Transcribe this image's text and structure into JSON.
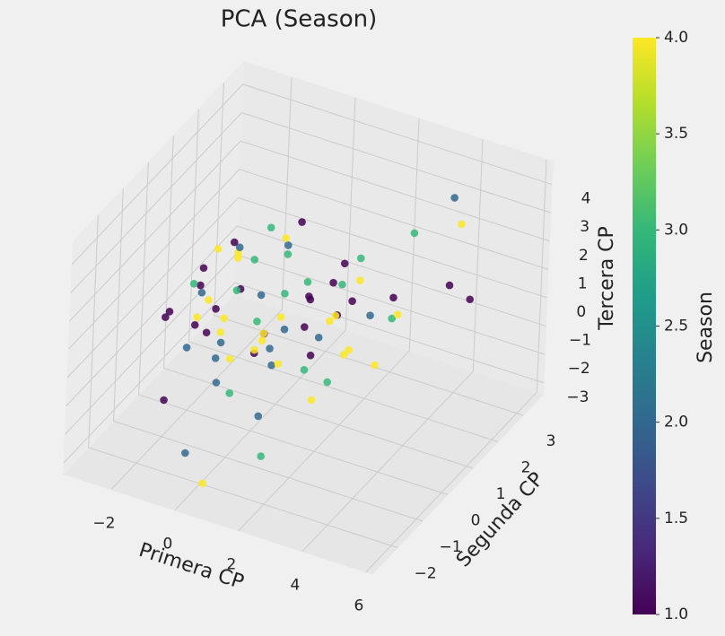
{
  "chart_data": {
    "type": "scatter3d",
    "title": "PCA (Season)",
    "xlabel": "Primera CP",
    "ylabel": "Segunda CP",
    "zlabel": "Tercera CP",
    "colorbar_label": "Season",
    "cmap": "viridis",
    "clim": [
      1,
      4
    ],
    "xlim": [
      -3.5,
      6.2
    ],
    "ylim": [
      -3,
      3.8
    ],
    "zlim": [
      -3.4,
      4.8
    ],
    "xticks": [
      {
        "value": -2,
        "label": "−2"
      },
      0,
      2,
      4,
      6
    ],
    "yticks": [
      {
        "value": -2,
        "label": "−2"
      },
      {
        "value": -1,
        "label": "−1"
      },
      0,
      1,
      2,
      3
    ],
    "zticks": [
      {
        "value": -3,
        "label": "−3"
      },
      {
        "value": -2,
        "label": "−2"
      },
      {
        "value": -1,
        "label": "−1"
      },
      0,
      1,
      2,
      3,
      4
    ],
    "cticks": [
      {
        "value": 1,
        "label": "1.0"
      },
      {
        "value": 1.5,
        "label": "1.5"
      },
      {
        "value": 2,
        "label": "2.0"
      },
      {
        "value": 2.5,
        "label": "2.5"
      },
      {
        "value": 3,
        "label": "3.0"
      },
      {
        "value": 3.5,
        "label": "3.5"
      },
      {
        "value": 4,
        "label": "4.0"
      }
    ],
    "x": [
      -2.1,
      -1.5,
      -0.8,
      0.3,
      1.2,
      -2.4,
      -1.1,
      0.5,
      1.8,
      -0.3,
      2.5,
      -1.9,
      0.9,
      -0.6,
      1.5,
      -2.8,
      -0.1,
      0.7,
      2.1,
      -1.3,
      3.0,
      -0.9,
      0.2,
      1.1,
      -2.2,
      -1.7,
      0.4,
      1.6,
      -0.5,
      2.8,
      -1.0,
      0.0,
      1.3,
      -2.6,
      -0.2,
      0.8,
      2.3,
      -1.4,
      3.5,
      -0.7,
      0.6,
      1.9,
      -2.0,
      -1.2,
      0.1,
      1.4,
      -0.4,
      2.6,
      -1.8,
      1.0,
      4.2,
      3.8,
      4.5,
      2.9,
      3.3,
      5.0,
      -0.5,
      0.3,
      1.7,
      -1.6,
      -2.3,
      -0.9,
      0.6,
      1.2,
      2.0,
      -1.4,
      0.4,
      -0.2,
      1.5,
      -2.5,
      0.8,
      -1.1,
      2.4,
      0.0,
      -0.6,
      1.1,
      -1.9,
      3.1,
      0.5,
      -0.3
    ],
    "y": [
      0.5,
      1.2,
      -0.3,
      0.8,
      1.5,
      -0.5,
      2.0,
      0.1,
      1.0,
      -1.0,
      0.6,
      1.8,
      -0.8,
      0.9,
      2.3,
      0.2,
      1.4,
      -0.6,
      0.3,
      1.1,
      1.7,
      -1.2,
      0.4,
      2.1,
      1.3,
      -0.2,
      1.6,
      -0.9,
      0.7,
      0.0,
      2.5,
      -1.5,
      1.9,
      0.9,
      0.3,
      1.2,
      -0.4,
      0.6,
      1.0,
      -0.7,
      2.4,
      0.8,
      -0.1,
      1.5,
      -1.1,
      0.5,
      1.8,
      1.3,
      0.2,
      -0.3,
      2.8,
      3.0,
      2.0,
      2.6,
      1.5,
      2.2,
      -2.0,
      -2.3,
      -1.8,
      -1.5,
      1.1,
      0.4,
      -0.5,
      2.7,
      -0.2,
      0.9,
      1.6,
      -1.3,
      0.2,
      1.4,
      0.0,
      1.7,
      0.8,
      -0.8,
      1.2,
      0.6,
      0.3,
      0.9,
      -1.6,
      2.2
    ],
    "z": [
      0.5,
      1.2,
      -0.3,
      0.8,
      -0.5,
      0.2,
      1.5,
      -1.0,
      0.4,
      0.9,
      -0.2,
      0.7,
      1.1,
      -0.6,
      0.3,
      -0.4,
      1.8,
      0.6,
      -1.2,
      0.1,
      0.8,
      1.4,
      -0.8,
      0.2,
      1.0,
      -0.1,
      0.5,
      1.6,
      -1.5,
      0.3,
      0.7,
      -0.3,
      1.2,
      0.0,
      -0.9,
      0.4,
      1.1,
      -0.5,
      0.9,
      1.3,
      -0.2,
      0.6,
      -1.1,
      0.8,
      0.2,
      -0.7,
      1.0,
      0.4,
      1.5,
      -0.4,
      2.8,
      3.4,
      1.5,
      2.2,
      0.5,
      1.0,
      -2.5,
      -3.0,
      -2.0,
      -1.5,
      -1.8,
      2.0,
      -2.2,
      0.6,
      -1.4,
      1.9,
      -2.6,
      0.3,
      1.7,
      -1.0,
      0.9,
      -0.6,
      1.3,
      2.3,
      -1.3,
      0.1,
      0.5,
      -0.8,
      -0.4,
      1.8
    ],
    "c": [
      1,
      4,
      2,
      3,
      4,
      1,
      3,
      2,
      1,
      4,
      4,
      2,
      1,
      3,
      4,
      1,
      2,
      4,
      3,
      1,
      1,
      4,
      2,
      3,
      4,
      1,
      3,
      2,
      1,
      4,
      4,
      2,
      1,
      3,
      4,
      1,
      2,
      4,
      3,
      1,
      1,
      4,
      2,
      3,
      4,
      1,
      3,
      2,
      1,
      4,
      4,
      2,
      1,
      3,
      4,
      1,
      2,
      4,
      3,
      1,
      1,
      4,
      2,
      3,
      4,
      1,
      3,
      2,
      1,
      4,
      4,
      2,
      1,
      3,
      4,
      1,
      2,
      4,
      3,
      1
    ]
  }
}
